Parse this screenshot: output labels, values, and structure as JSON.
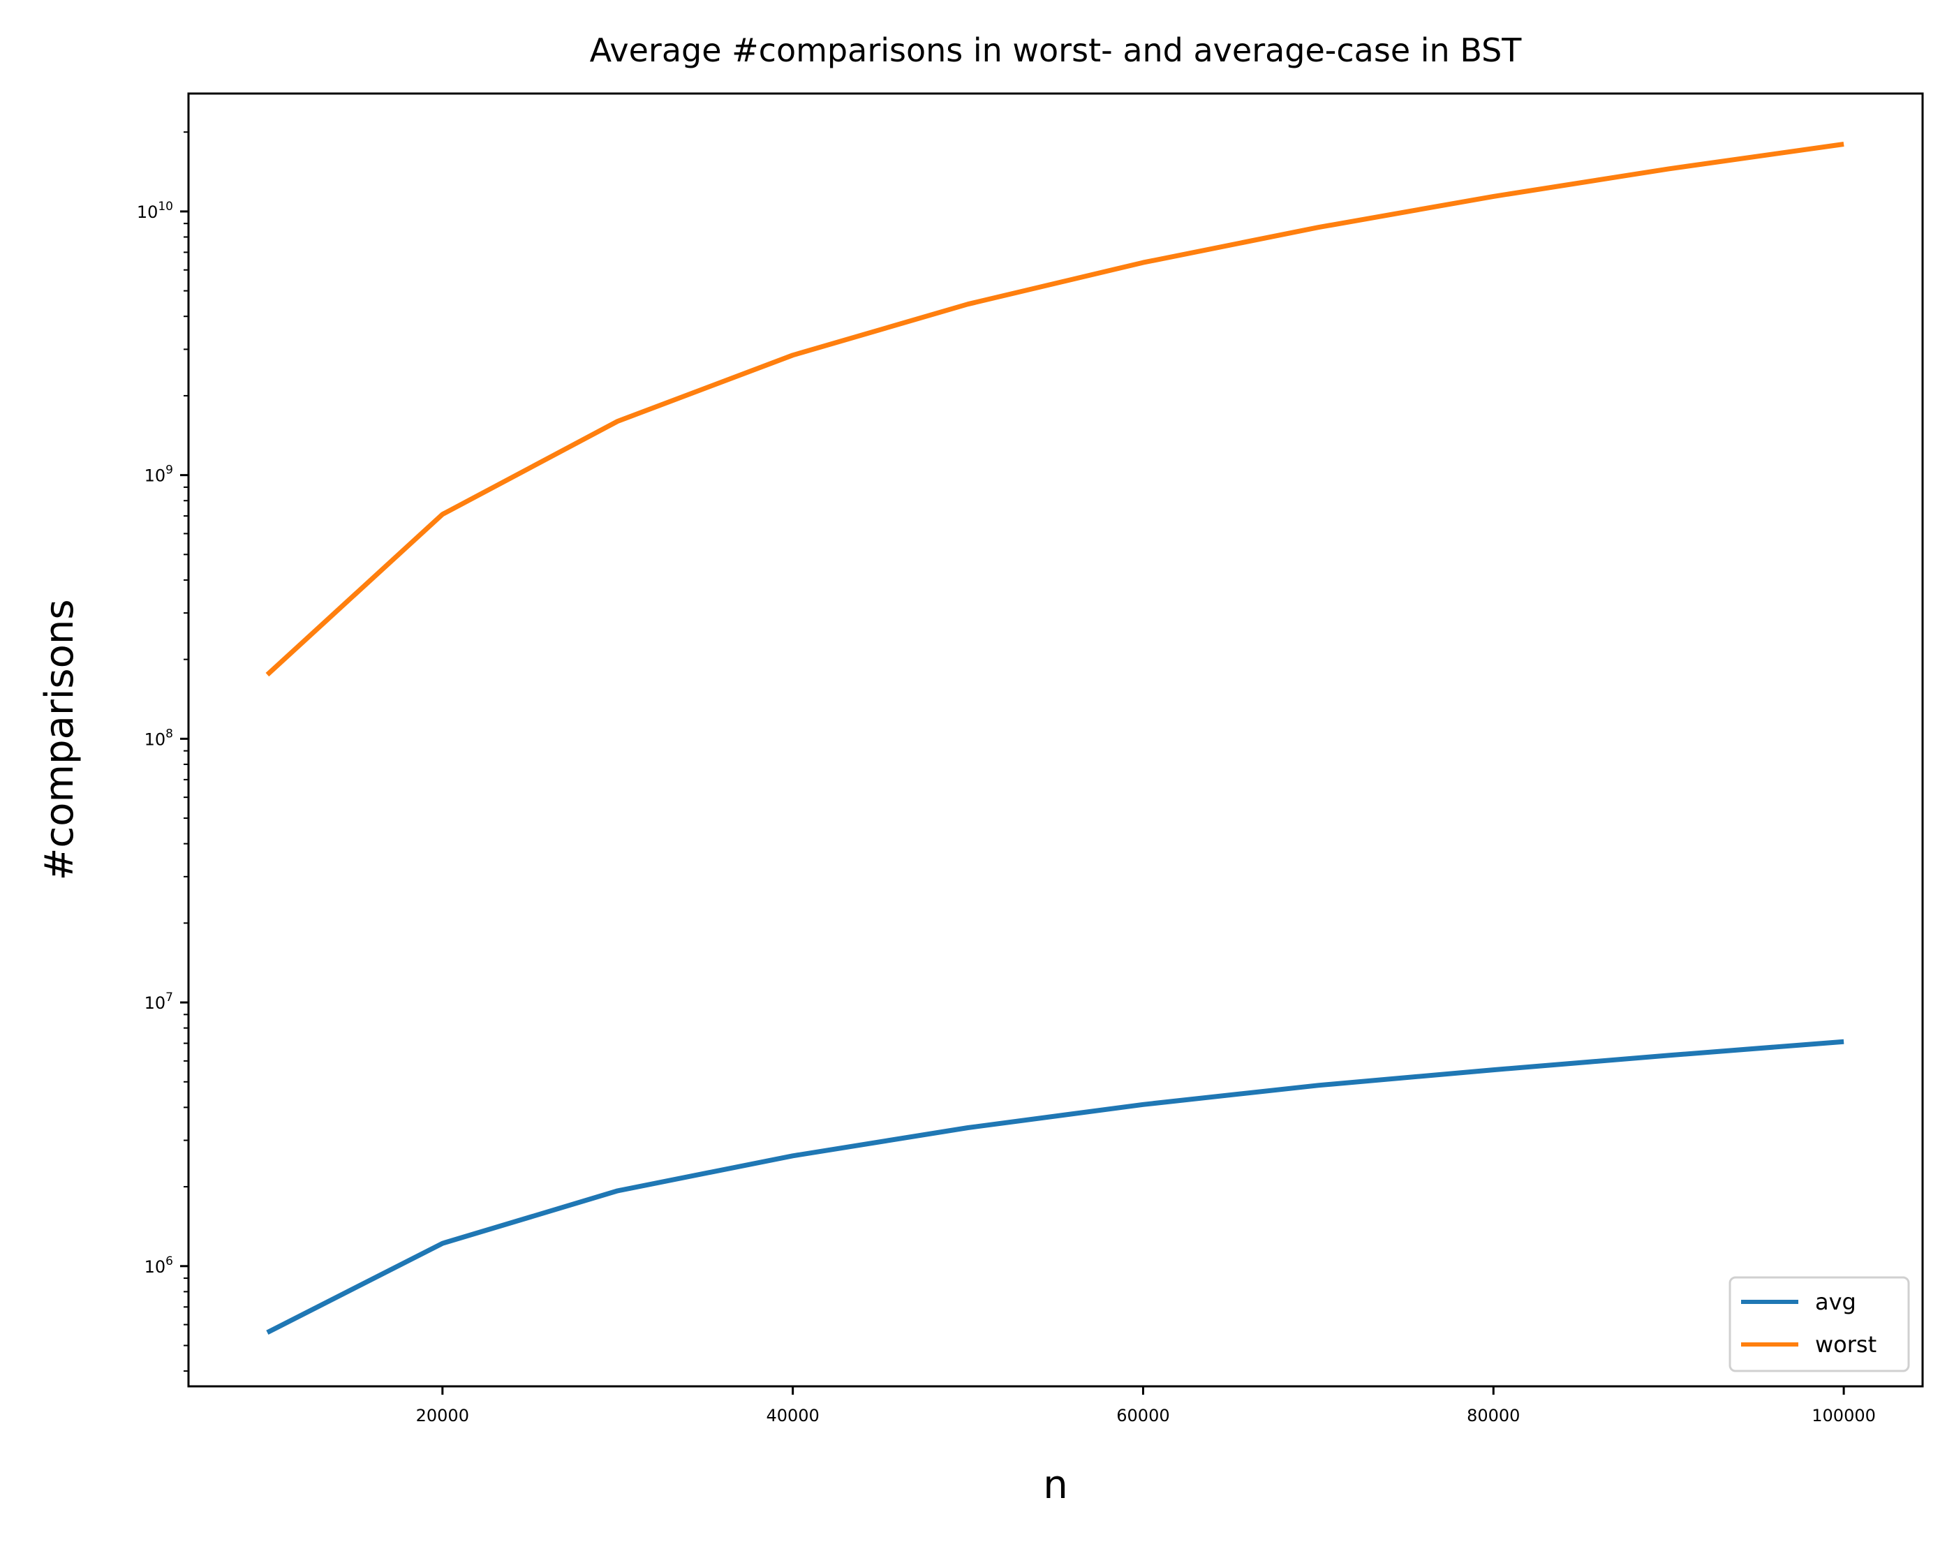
{
  "chart_data": {
    "type": "line",
    "title": "Average #comparisons in worst- and average-case in BST",
    "xlabel": "n",
    "ylabel": "#comparisons",
    "yscale": "log",
    "xlim": [
      5500,
      104500
    ],
    "ylim": [
      350000,
      28000000000
    ],
    "x": [
      10000,
      20000,
      30000,
      40000,
      50000,
      60000,
      70000,
      80000,
      90000,
      100000
    ],
    "x_ticks": [
      20000,
      40000,
      60000,
      80000,
      100000
    ],
    "x_tick_labels": [
      "20000",
      "40000",
      "60000",
      "80000",
      "100000"
    ],
    "y_ticks": [
      {
        "value": 1000000,
        "base": "10",
        "exp": "6"
      },
      {
        "value": 10000000,
        "base": "10",
        "exp": "7"
      },
      {
        "value": 100000000,
        "base": "10",
        "exp": "8"
      },
      {
        "value": 1000000000,
        "base": "10",
        "exp": "9"
      },
      {
        "value": 10000000000,
        "base": "10",
        "exp": "10"
      }
    ],
    "grid": false,
    "legend": "lower-right",
    "series": [
      {
        "name": "avg",
        "color": "#1f77b4",
        "values": [
          560000,
          1220000,
          1930000,
          2620000,
          3350000,
          4100000,
          4850000,
          5550000,
          6300000,
          7100000
        ]
      },
      {
        "name": "worst",
        "color": "#ff7f0e",
        "values": [
          175000000,
          710000000,
          1600000000,
          2850000000,
          4450000000,
          6400000000,
          8700000000,
          11400000000,
          14500000000,
          18000000000
        ]
      }
    ]
  }
}
